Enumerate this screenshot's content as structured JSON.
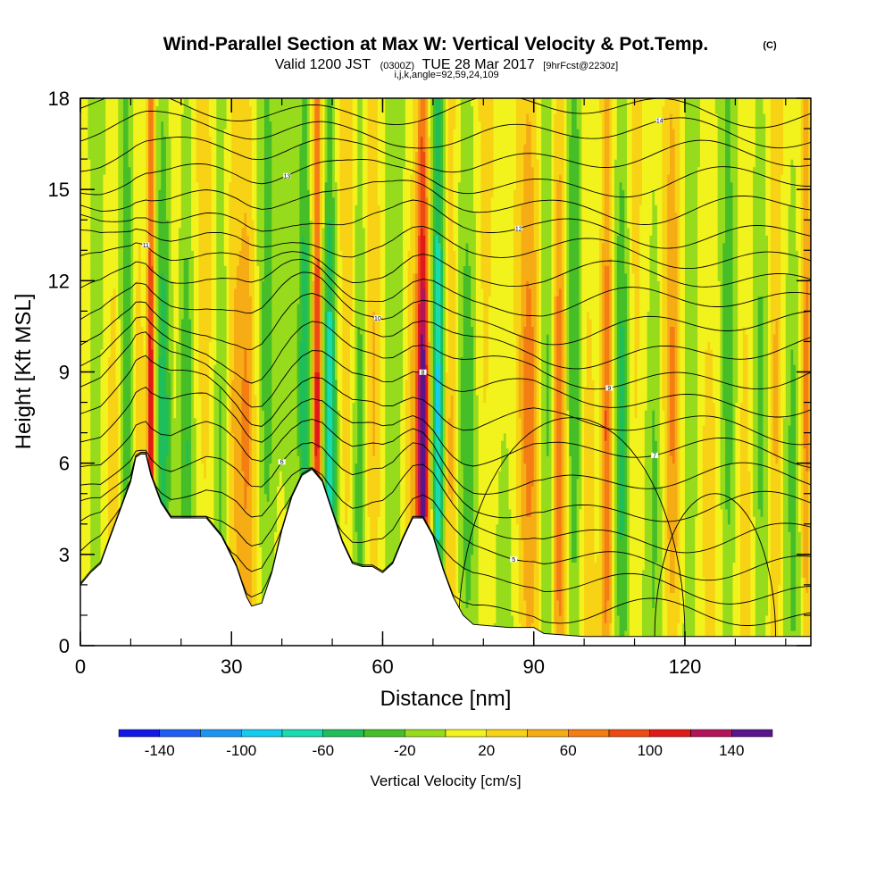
{
  "header": {
    "title": "Wind-Parallel Section at Max W: Vertical Velocity & Pot.Temp.",
    "copyright": "(C)",
    "valid_label": "Valid 1200 JST",
    "valid_utc": "(0300Z)",
    "valid_date": "TUE 28 Mar 2017",
    "forecast_info": "[9hrFcst@2230z]",
    "section_params": "i,j,k,angle=92,59,24,109"
  },
  "chart_data": {
    "type": "heatmap",
    "xlabel": "Distance [nm]",
    "ylabel": "Height [Kft MSL]",
    "xlim": [
      0,
      145
    ],
    "ylim": [
      0,
      18
    ],
    "x_ticks": [
      0,
      30,
      60,
      90,
      120
    ],
    "y_ticks": [
      0,
      3,
      6,
      9,
      12,
      15,
      18
    ],
    "x_minor_step": 10,
    "colorbar": {
      "label": "Vertical Velocity [cm/s]",
      "tick_labels": [
        "-140",
        "-100",
        "-60",
        "-20",
        "20",
        "60",
        "100",
        "140"
      ],
      "tick_values": [
        -140,
        -100,
        -60,
        -20,
        20,
        60,
        100,
        140
      ],
      "range": [
        -160,
        160
      ],
      "bins": [
        {
          "from": -160,
          "to": -140,
          "color": "#1418e6"
        },
        {
          "from": -140,
          "to": -120,
          "color": "#1e5cf2"
        },
        {
          "from": -120,
          "to": -100,
          "color": "#1a96f2"
        },
        {
          "from": -100,
          "to": -80,
          "color": "#14cced"
        },
        {
          "from": -80,
          "to": -60,
          "color": "#18dcb0"
        },
        {
          "from": -60,
          "to": -40,
          "color": "#1ebe5a"
        },
        {
          "from": -40,
          "to": -20,
          "color": "#46be28"
        },
        {
          "from": -20,
          "to": 0,
          "color": "#96dc1c"
        },
        {
          "from": 0,
          "to": 20,
          "color": "#f2f21c"
        },
        {
          "from": 20,
          "to": 40,
          "color": "#f8d214"
        },
        {
          "from": 40,
          "to": 60,
          "color": "#f6ac14"
        },
        {
          "from": 60,
          "to": 80,
          "color": "#f47e14"
        },
        {
          "from": 80,
          "to": 100,
          "color": "#ee4a14"
        },
        {
          "from": 100,
          "to": 120,
          "color": "#e01a1a"
        },
        {
          "from": 120,
          "to": 140,
          "color": "#b4145a"
        },
        {
          "from": 140,
          "to": 160,
          "color": "#5a148c"
        }
      ]
    },
    "vertical_velocity_features": [
      {
        "x": 3,
        "w": 1.5,
        "amp": -30
      },
      {
        "x": 7,
        "w": 1.4,
        "amp": 25
      },
      {
        "x": 9,
        "w": 1.6,
        "amp": -45
      },
      {
        "x": 11.5,
        "w": 1.2,
        "amp": 35
      },
      {
        "x": 14,
        "w": 0.8,
        "amp": 125
      },
      {
        "x": 16.5,
        "w": 1.4,
        "amp": -55
      },
      {
        "x": 19,
        "w": 1.5,
        "amp": 10
      },
      {
        "x": 21,
        "w": 1.5,
        "amp": -45
      },
      {
        "x": 24.5,
        "w": 1.8,
        "amp": 15
      },
      {
        "x": 28,
        "w": 1.5,
        "amp": -40
      },
      {
        "x": 30.5,
        "w": 1.6,
        "amp": 25
      },
      {
        "x": 33,
        "w": 1.6,
        "amp": 45
      },
      {
        "x": 37,
        "w": 1.8,
        "amp": -40
      },
      {
        "x": 41,
        "w": 1.6,
        "amp": -10
      },
      {
        "x": 44.5,
        "w": 1.2,
        "amp": -60
      },
      {
        "x": 47,
        "w": 0.9,
        "amp": 115
      },
      {
        "x": 49.5,
        "w": 1.2,
        "amp": -80
      },
      {
        "x": 53,
        "w": 1.5,
        "amp": 25
      },
      {
        "x": 55.5,
        "w": 1.5,
        "amp": -45
      },
      {
        "x": 58,
        "w": 1.5,
        "amp": 30
      },
      {
        "x": 62,
        "w": 2.2,
        "amp": -35
      },
      {
        "x": 66,
        "w": 1.4,
        "amp": 30
      },
      {
        "x": 68,
        "w": 1.2,
        "amp": 150
      },
      {
        "x": 71,
        "w": 1.2,
        "amp": -90
      },
      {
        "x": 73.5,
        "w": 1.3,
        "amp": 45
      },
      {
        "x": 77,
        "w": 1.8,
        "amp": -35
      },
      {
        "x": 80,
        "w": 2,
        "amp": 20
      },
      {
        "x": 85,
        "w": 2.4,
        "amp": -10
      },
      {
        "x": 89,
        "w": 2.2,
        "amp": 55
      },
      {
        "x": 92.5,
        "w": 1.5,
        "amp": -45
      },
      {
        "x": 95,
        "w": 1.2,
        "amp": 70
      },
      {
        "x": 98,
        "w": 1.3,
        "amp": -50
      },
      {
        "x": 101,
        "w": 1.5,
        "amp": 25
      },
      {
        "x": 104.5,
        "w": 1.2,
        "amp": 85
      },
      {
        "x": 107.5,
        "w": 1.4,
        "amp": -50
      },
      {
        "x": 110,
        "w": 1.5,
        "amp": 20
      },
      {
        "x": 114,
        "w": 1.5,
        "amp": -30
      },
      {
        "x": 117.5,
        "w": 1.6,
        "amp": 50
      },
      {
        "x": 121,
        "w": 1.8,
        "amp": -35
      },
      {
        "x": 125,
        "w": 2,
        "amp": 10
      },
      {
        "x": 128.5,
        "w": 1.5,
        "amp": -40
      },
      {
        "x": 132,
        "w": 1.5,
        "amp": 25
      },
      {
        "x": 135,
        "w": 1.3,
        "amp": -25
      },
      {
        "x": 138,
        "w": 1.2,
        "amp": 45
      },
      {
        "x": 141.5,
        "w": 1.4,
        "amp": -30
      },
      {
        "x": 144,
        "w": 1,
        "amp": 60
      }
    ],
    "terrain_kft": [
      [
        0,
        2
      ],
      [
        2,
        2.4
      ],
      [
        4,
        2.7
      ],
      [
        6,
        3.6
      ],
      [
        8,
        4.5
      ],
      [
        10,
        5.4
      ],
      [
        11,
        6.2
      ],
      [
        12,
        6.3
      ],
      [
        13,
        6.3
      ],
      [
        14,
        5.6
      ],
      [
        16,
        4.7
      ],
      [
        18,
        4.2
      ],
      [
        20,
        4.2
      ],
      [
        25,
        4.2
      ],
      [
        28,
        3.6
      ],
      [
        31,
        2.6
      ],
      [
        33,
        1.6
      ],
      [
        34,
        1.3
      ],
      [
        36,
        1.4
      ],
      [
        38,
        2.4
      ],
      [
        40,
        3.8
      ],
      [
        42,
        4.9
      ],
      [
        44,
        5.6
      ],
      [
        46,
        5.8
      ],
      [
        48,
        5.4
      ],
      [
        50,
        4.4
      ],
      [
        52,
        3.4
      ],
      [
        54,
        2.7
      ],
      [
        56,
        2.6
      ],
      [
        58,
        2.6
      ],
      [
        60,
        2.4
      ],
      [
        62,
        2.7
      ],
      [
        64,
        3.5
      ],
      [
        66,
        4.2
      ],
      [
        68,
        4.2
      ],
      [
        70,
        3.6
      ],
      [
        72,
        2.5
      ],
      [
        74,
        1.6
      ],
      [
        76,
        1.0
      ],
      [
        78,
        0.7
      ],
      [
        85,
        0.6
      ],
      [
        90,
        0.6
      ],
      [
        92,
        0.4
      ],
      [
        100,
        0.3
      ],
      [
        145,
        0.3
      ]
    ],
    "theta_contours": [
      {
        "base": 0.8,
        "label": null
      },
      {
        "base": 1.7,
        "label": null
      },
      {
        "base": 2.6,
        "label": "5"
      },
      {
        "base": 3.5,
        "label": null
      },
      {
        "base": 4.4,
        "label": "6"
      },
      {
        "base": 5.3,
        "label": null
      },
      {
        "base": 6.2,
        "label": "7"
      },
      {
        "base": 7.1,
        "label": null
      },
      {
        "base": 8.0,
        "label": "8"
      },
      {
        "base": 8.8,
        "label": "9"
      },
      {
        "base": 9.6,
        "label": null
      },
      {
        "base": 10.4,
        "label": "10"
      },
      {
        "base": 11.2,
        "label": null
      },
      {
        "base": 12.0,
        "label": "11"
      },
      {
        "base": 12.8,
        "label": null
      },
      {
        "base": 13.6,
        "label": "12"
      },
      {
        "base": 14.4,
        "label": null
      },
      {
        "base": 15.2,
        "label": "13"
      },
      {
        "base": 16.0,
        "label": null
      },
      {
        "base": 16.8,
        "label": "14"
      },
      {
        "base": 17.6,
        "label": null
      }
    ],
    "closed_contours": [
      {
        "x": [
          75,
          120
        ],
        "ylevel": 7.5
      },
      {
        "x": [
          114,
          138
        ],
        "ylevel": 5.0
      }
    ]
  }
}
